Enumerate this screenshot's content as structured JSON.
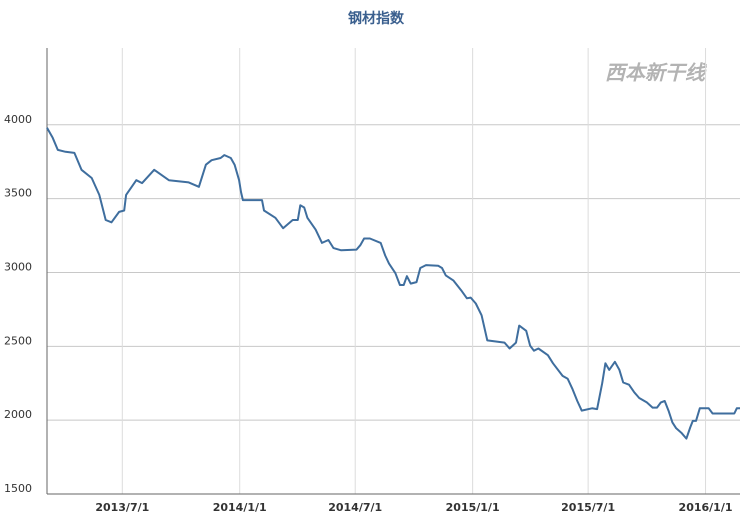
{
  "chart_data": {
    "type": "line",
    "title": "钢材指数",
    "watermark": "西本新干线",
    "x": [
      "2013-03-05",
      "2013-03-14",
      "2013-03-22",
      "2013-04-03",
      "2013-04-17",
      "2013-04-28",
      "2013-05-14",
      "2013-05-26",
      "2013-06-05",
      "2013-06-14",
      "2013-06-26",
      "2013-07-04",
      "2013-07-07",
      "2013-07-23",
      "2013-08-01",
      "2013-08-20",
      "2013-09-12",
      "2013-10-13",
      "2013-10-29",
      "2013-11-09",
      "2013-11-18",
      "2013-12-02",
      "2013-12-08",
      "2013-12-18",
      "2013-12-24",
      "2013-12-31",
      "2014-01-03",
      "2014-01-06",
      "2014-02-05",
      "2014-02-08",
      "2014-02-26",
      "2014-03-10",
      "2014-03-25",
      "2014-04-02",
      "2014-04-06",
      "2014-04-12",
      "2014-04-17",
      "2014-04-30",
      "2014-05-10",
      "2014-05-20",
      "2014-05-28",
      "2014-06-09",
      "2014-07-03",
      "2014-07-09",
      "2014-07-15",
      "2014-07-24",
      "2014-08-10",
      "2014-08-17",
      "2014-08-23",
      "2014-09-02",
      "2014-09-09",
      "2014-09-15",
      "2014-09-20",
      "2014-09-26",
      "2014-10-05",
      "2014-10-11",
      "2014-10-20",
      "2014-11-08",
      "2014-11-14",
      "2014-11-20",
      "2014-12-02",
      "2014-12-14",
      "2014-12-23",
      "2014-12-29",
      "2015-01-06",
      "2015-01-15",
      "2015-01-24",
      "2015-02-20",
      "2015-02-28",
      "2015-03-10",
      "2015-03-15",
      "2015-03-26",
      "2015-04-01",
      "2015-04-07",
      "2015-04-14",
      "2015-04-29",
      "2015-05-07",
      "2015-05-22",
      "2015-05-30",
      "2015-06-06",
      "2015-06-14",
      "2015-06-21",
      "2015-07-07",
      "2015-07-15",
      "2015-07-23",
      "2015-07-28",
      "2015-08-03",
      "2015-08-12",
      "2015-08-19",
      "2015-08-25",
      "2015-09-03",
      "2015-09-11",
      "2015-09-19",
      "2015-10-01",
      "2015-10-10",
      "2015-10-17",
      "2015-10-23",
      "2015-10-29",
      "2015-11-04",
      "2015-11-10",
      "2015-11-16",
      "2015-11-24",
      "2015-12-02",
      "2015-12-08",
      "2015-12-12",
      "2015-12-17",
      "2015-12-23",
      "2016-01-06",
      "2016-01-12",
      "2016-02-15",
      "2016-02-19",
      "2016-02-24"
    ],
    "series": [
      {
        "name": "钢材指数",
        "color": "#3f6e9e",
        "values": [
          3980,
          3912,
          3830,
          3817,
          3810,
          3695,
          3640,
          3525,
          3355,
          3340,
          3410,
          3420,
          3525,
          3625,
          3605,
          3695,
          3625,
          3610,
          3580,
          3730,
          3760,
          3775,
          3795,
          3775,
          3730,
          3625,
          3545,
          3490,
          3490,
          3420,
          3370,
          3300,
          3355,
          3355,
          3455,
          3440,
          3370,
          3290,
          3200,
          3220,
          3165,
          3150,
          3155,
          3185,
          3230,
          3230,
          3200,
          3115,
          3060,
          2995,
          2915,
          2915,
          2975,
          2925,
          2935,
          3030,
          3050,
          3045,
          3030,
          2980,
          2945,
          2880,
          2825,
          2830,
          2790,
          2710,
          2540,
          2525,
          2485,
          2525,
          2640,
          2605,
          2505,
          2470,
          2485,
          2440,
          2385,
          2300,
          2280,
          2215,
          2130,
          2065,
          2080,
          2075,
          2250,
          2385,
          2340,
          2395,
          2340,
          2255,
          2240,
          2190,
          2150,
          2120,
          2085,
          2085,
          2120,
          2130,
          2065,
          1985,
          1945,
          1915,
          1875,
          1950,
          1995,
          1995,
          2080,
          2080,
          2045,
          2045,
          2080,
          2080
        ]
      }
    ],
    "xlim": [
      "2013-03-05",
      "2016-02-24"
    ],
    "xticks": [
      {
        "value": "2013-07-01",
        "label": "2013/7/1"
      },
      {
        "value": "2014-01-01",
        "label": "2014/1/1"
      },
      {
        "value": "2014-07-01",
        "label": "2014/7/1"
      },
      {
        "value": "2015-01-01",
        "label": "2015/1/1"
      },
      {
        "value": "2015-07-01",
        "label": "2015/7/1"
      },
      {
        "value": "2016-01-01",
        "label": "2016/1/1"
      }
    ],
    "ylim": [
      1500,
      4520
    ],
    "yticks": [
      1500,
      2000,
      2500,
      3000,
      3500,
      4000
    ],
    "grid": true
  }
}
